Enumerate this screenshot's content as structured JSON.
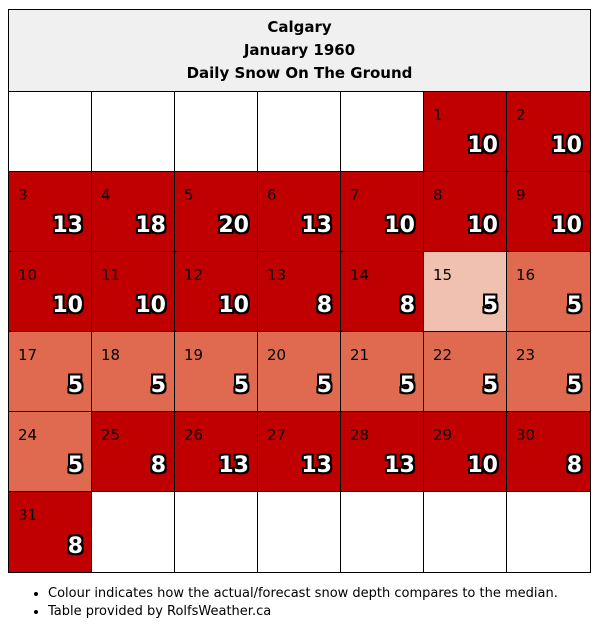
{
  "header": {
    "city": "Calgary",
    "month": "January 1960",
    "metric": "Daily Snow On The Ground"
  },
  "colors": {
    "high": "#c00000",
    "mid": "#e06a50",
    "low": "#f0c0b0",
    "empty": "#ffffff"
  },
  "leading_blanks": 5,
  "days": [
    {
      "day": "1",
      "value": "10",
      "level": "high"
    },
    {
      "day": "2",
      "value": "10",
      "level": "high"
    },
    {
      "day": "3",
      "value": "13",
      "level": "high"
    },
    {
      "day": "4",
      "value": "18",
      "level": "high"
    },
    {
      "day": "5",
      "value": "20",
      "level": "high"
    },
    {
      "day": "6",
      "value": "13",
      "level": "high"
    },
    {
      "day": "7",
      "value": "10",
      "level": "high"
    },
    {
      "day": "8",
      "value": "10",
      "level": "high"
    },
    {
      "day": "9",
      "value": "10",
      "level": "high"
    },
    {
      "day": "10",
      "value": "10",
      "level": "high"
    },
    {
      "day": "11",
      "value": "10",
      "level": "high"
    },
    {
      "day": "12",
      "value": "10",
      "level": "high"
    },
    {
      "day": "13",
      "value": "8",
      "level": "high"
    },
    {
      "day": "14",
      "value": "8",
      "level": "high"
    },
    {
      "day": "15",
      "value": "5",
      "level": "low"
    },
    {
      "day": "16",
      "value": "5",
      "level": "mid"
    },
    {
      "day": "17",
      "value": "5",
      "level": "mid"
    },
    {
      "day": "18",
      "value": "5",
      "level": "mid"
    },
    {
      "day": "19",
      "value": "5",
      "level": "mid"
    },
    {
      "day": "20",
      "value": "5",
      "level": "mid"
    },
    {
      "day": "21",
      "value": "5",
      "level": "mid"
    },
    {
      "day": "22",
      "value": "5",
      "level": "mid"
    },
    {
      "day": "23",
      "value": "5",
      "level": "mid"
    },
    {
      "day": "24",
      "value": "5",
      "level": "mid"
    },
    {
      "day": "25",
      "value": "8",
      "level": "high"
    },
    {
      "day": "26",
      "value": "13",
      "level": "high"
    },
    {
      "day": "27",
      "value": "13",
      "level": "high"
    },
    {
      "day": "28",
      "value": "13",
      "level": "high"
    },
    {
      "day": "29",
      "value": "10",
      "level": "high"
    },
    {
      "day": "30",
      "value": "8",
      "level": "high"
    },
    {
      "day": "31",
      "value": "8",
      "level": "high"
    }
  ],
  "notes": [
    "Colour indicates how the actual/forecast snow depth compares to the median.",
    "Table provided by RolfsWeather.ca"
  ]
}
